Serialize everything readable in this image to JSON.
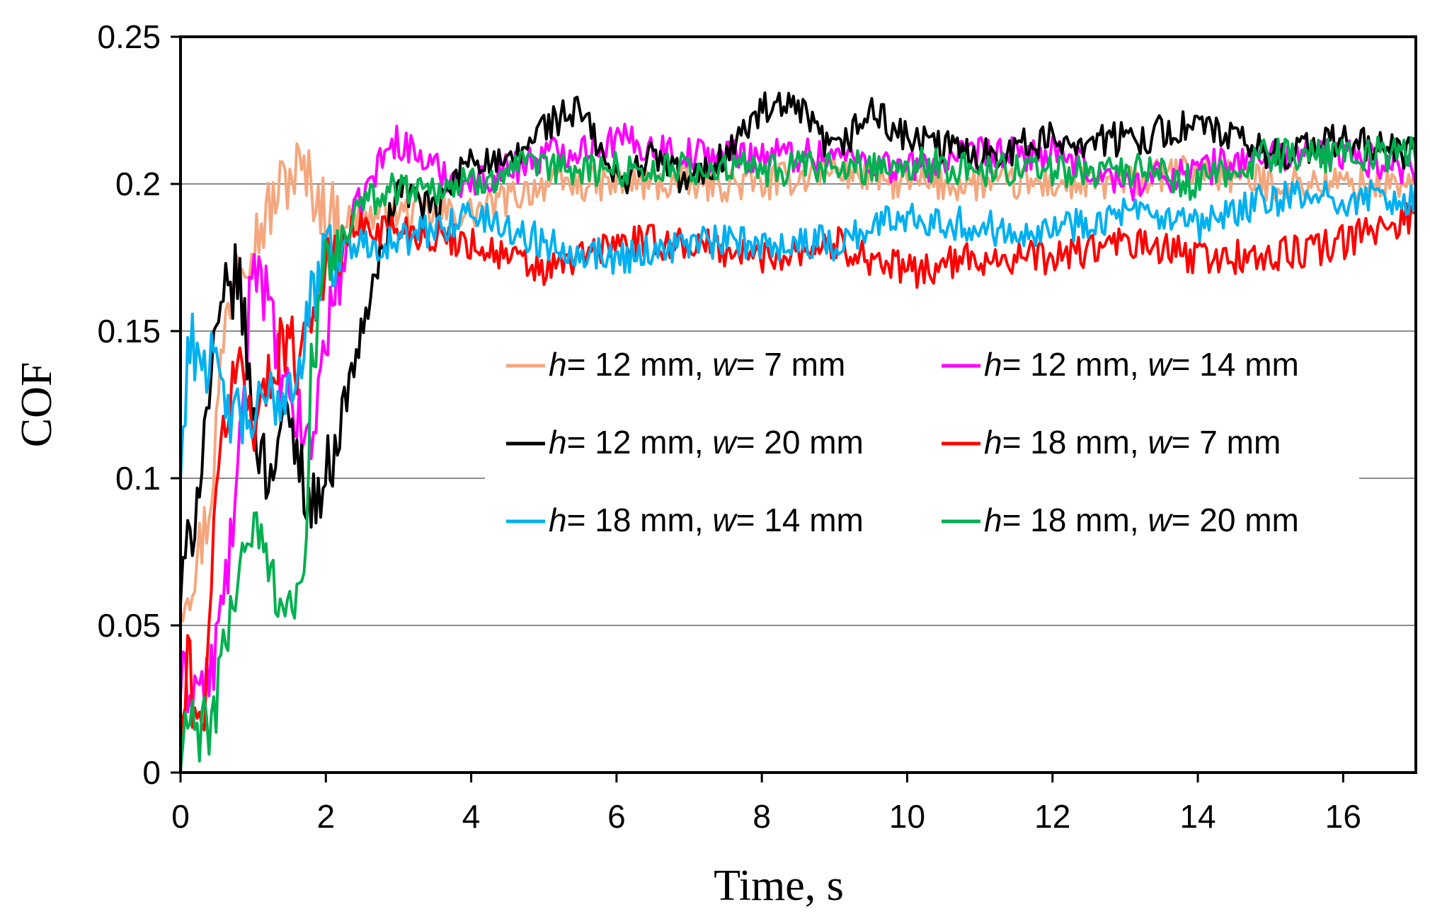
{
  "chart_data": {
    "type": "line",
    "title": "",
    "xlabel": "Time, s",
    "ylabel": "COF",
    "xlim": [
      0,
      17
    ],
    "ylim": [
      0,
      0.25
    ],
    "x_ticks": [
      0,
      2,
      4,
      6,
      8,
      10,
      12,
      14,
      16
    ],
    "x_tick_labels": [
      "0",
      "2",
      "4",
      "6",
      "8",
      "10",
      "12",
      "14",
      "16"
    ],
    "y_ticks": [
      0,
      0.05,
      0.1,
      0.15,
      0.2,
      0.25
    ],
    "y_tick_labels": [
      "0",
      "0.05",
      "0.1",
      "0.15",
      "0.2",
      "0.25"
    ],
    "grid": "horizontal",
    "legend_position": "center-right",
    "series": [
      {
        "name": "h= 12 mm, w= 7 mm",
        "label_h": "h",
        "label_h_value": "= 12 mm, ",
        "label_w": "w",
        "label_w_value": "= 7 mm",
        "color": "#F4A77E",
        "x": [
          0,
          0.2,
          0.4,
          0.6,
          0.8,
          1.0,
          1.2,
          1.4,
          1.6,
          1.8,
          2.0,
          2.4,
          3,
          4,
          5,
          6,
          7,
          8,
          9,
          10,
          11,
          12,
          13,
          14,
          15,
          16,
          17
        ],
        "y": [
          0.06,
          0.07,
          0.09,
          0.15,
          0.18,
          0.18,
          0.19,
          0.2,
          0.205,
          0.2,
          0.19,
          0.188,
          0.19,
          0.19,
          0.2,
          0.2,
          0.2,
          0.2,
          0.205,
          0.2,
          0.2,
          0.2,
          0.2,
          0.205,
          0.2,
          0.2,
          0.2
        ]
      },
      {
        "name": "h= 12 mm, w= 14 mm",
        "label_h": "h",
        "label_h_value": "= 12 mm, ",
        "label_w": "w",
        "label_w_value": "= 14 mm",
        "color": "#FF00FF",
        "x": [
          0,
          0.2,
          0.4,
          0.6,
          0.8,
          1.0,
          1.2,
          1.4,
          1.6,
          1.8,
          2.0,
          2.4,
          2.8,
          3.0,
          3.5,
          4,
          5,
          6,
          7,
          8,
          9,
          10,
          11,
          12,
          13,
          14,
          15,
          16,
          17
        ],
        "y": [
          0.03,
          0.03,
          0.03,
          0.06,
          0.1,
          0.18,
          0.16,
          0.13,
          0.12,
          0.11,
          0.15,
          0.19,
          0.21,
          0.215,
          0.205,
          0.2,
          0.21,
          0.215,
          0.21,
          0.21,
          0.21,
          0.205,
          0.21,
          0.21,
          0.2,
          0.205,
          0.21,
          0.21,
          0.205
        ]
      },
      {
        "name": "h= 12 mm, w= 20 mm",
        "label_h": "h",
        "label_h_value": "= 12 mm, ",
        "label_w": "w",
        "label_w_value": "= 20 mm",
        "color": "#000000",
        "x": [
          0,
          0.2,
          0.4,
          0.6,
          0.8,
          1.0,
          1.2,
          1.4,
          1.6,
          1.8,
          2.0,
          2.4,
          2.8,
          3.0,
          3.5,
          4.0,
          4.5,
          5.0,
          5.5,
          6.0,
          6.5,
          7.0,
          7.5,
          8.0,
          8.5,
          9.0,
          9.5,
          10.0,
          11,
          12,
          13,
          14,
          15,
          16,
          17
        ],
        "y": [
          0.06,
          0.09,
          0.13,
          0.16,
          0.17,
          0.12,
          0.1,
          0.12,
          0.11,
          0.09,
          0.1,
          0.14,
          0.18,
          0.2,
          0.19,
          0.21,
          0.205,
          0.22,
          0.225,
          0.2,
          0.21,
          0.2,
          0.21,
          0.225,
          0.225,
          0.21,
          0.225,
          0.215,
          0.21,
          0.215,
          0.215,
          0.22,
          0.21,
          0.215,
          0.21
        ]
      },
      {
        "name": "h= 18 mm, w= 7 mm",
        "label_h": "h",
        "label_h_value": "= 18 mm, ",
        "label_w": "w",
        "label_w_value": "= 7 mm",
        "color": "#FF0000",
        "x": [
          0,
          0.1,
          0.2,
          0.3,
          0.4,
          0.6,
          0.8,
          1.0,
          1.2,
          1.4,
          1.6,
          1.8,
          2.0,
          2.4,
          3.0,
          4.0,
          5.0,
          6.0,
          7.0,
          8.0,
          9.0,
          10.0,
          11,
          12,
          13,
          14,
          15,
          16,
          17
        ],
        "y": [
          0.0,
          0.04,
          0.02,
          0.01,
          0.06,
          0.12,
          0.14,
          0.12,
          0.13,
          0.15,
          0.14,
          0.16,
          0.17,
          0.185,
          0.185,
          0.18,
          0.17,
          0.18,
          0.18,
          0.175,
          0.18,
          0.17,
          0.175,
          0.175,
          0.18,
          0.175,
          0.175,
          0.18,
          0.19
        ]
      },
      {
        "name": "h= 18 mm, w= 14 mm",
        "label_h": "h",
        "label_h_value": "= 18 mm, ",
        "label_w": "w",
        "label_w_value": "= 14 mm",
        "color": "#00B0F0",
        "x": [
          0,
          0.1,
          0.2,
          0.4,
          0.6,
          0.8,
          1.0,
          1.2,
          1.4,
          1.6,
          1.8,
          2.0,
          2.4,
          3.0,
          3.5,
          4.0,
          5.0,
          6.0,
          7.0,
          8.0,
          9.0,
          10.0,
          11,
          12,
          13,
          14,
          15,
          16,
          17
        ],
        "y": [
          0.1,
          0.145,
          0.145,
          0.14,
          0.125,
          0.12,
          0.12,
          0.125,
          0.13,
          0.135,
          0.16,
          0.175,
          0.18,
          0.18,
          0.185,
          0.19,
          0.18,
          0.175,
          0.18,
          0.18,
          0.18,
          0.19,
          0.185,
          0.185,
          0.19,
          0.185,
          0.195,
          0.195,
          0.195
        ]
      },
      {
        "name": "h= 18 mm, w= 20 mm",
        "label_h": "h",
        "label_h_value": "= 18 mm, ",
        "label_w": "w",
        "label_w_value": "= 20 mm",
        "color": "#00B050",
        "x": [
          0,
          0.05,
          0.2,
          0.4,
          0.6,
          0.8,
          1.0,
          1.2,
          1.4,
          1.6,
          1.7,
          1.8,
          2.0,
          2.4,
          2.8,
          3.0,
          3.5,
          4.0,
          4.5,
          5.0,
          6.0,
          7.0,
          8.0,
          9.0,
          10.0,
          11,
          12,
          13,
          14,
          15,
          16,
          17
        ],
        "y": [
          0.0,
          0.015,
          0.015,
          0.013,
          0.04,
          0.07,
          0.085,
          0.07,
          0.06,
          0.057,
          0.06,
          0.14,
          0.17,
          0.19,
          0.198,
          0.199,
          0.199,
          0.2,
          0.205,
          0.205,
          0.205,
          0.205,
          0.205,
          0.205,
          0.207,
          0.205,
          0.205,
          0.205,
          0.2,
          0.21,
          0.21,
          0.21
        ]
      }
    ]
  }
}
